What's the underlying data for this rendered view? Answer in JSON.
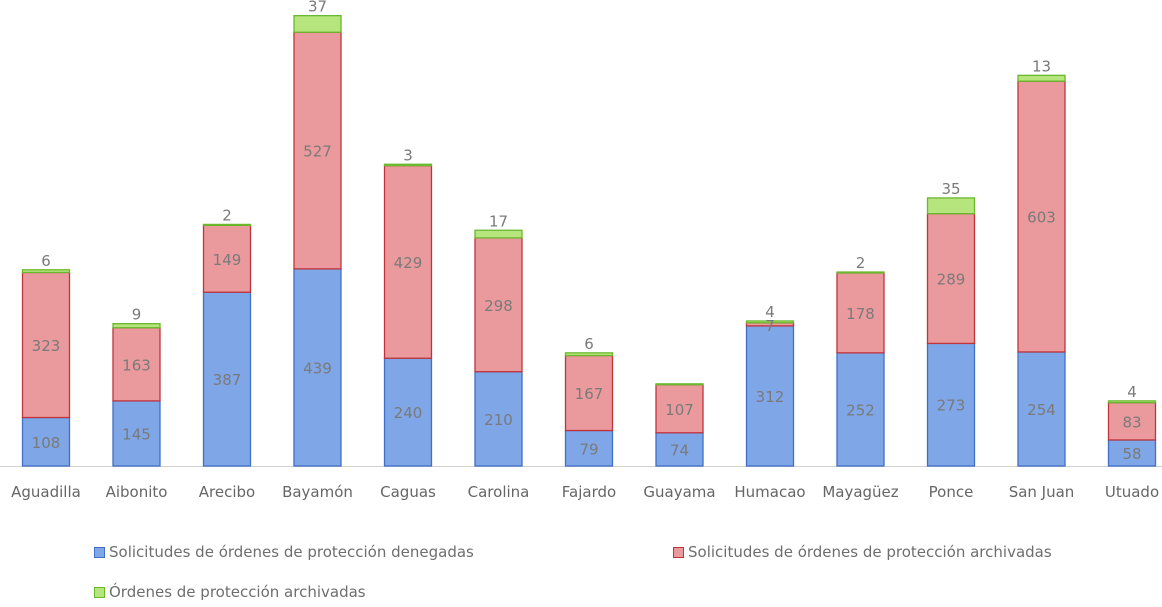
{
  "colors": {
    "denegadas": "#7fa6e6",
    "denegadas_border": "#3f6fc7",
    "sol_archivadas": "#ea9a9c",
    "sol_archivadas_border": "#c0343c",
    "ord_archivadas": "#b6e47d",
    "ord_archivadas_border": "#6ab82e",
    "label_text": "#7a7a7a",
    "axis": "#d0d0d0"
  },
  "chart_data": {
    "type": "bar",
    "stacked": true,
    "categories": [
      "Aguadilla",
      "Aibonito",
      "Arecibo",
      "Bayamón",
      "Caguas",
      "Carolina",
      "Fajardo",
      "Guayama",
      "Humacao",
      "Mayagüez",
      "Ponce",
      "San Juan",
      "Utuado"
    ],
    "series": [
      {
        "name": "Solicitudes de órdenes de protección denegadas",
        "values": [
          108,
          145,
          387,
          439,
          240,
          210,
          79,
          74,
          312,
          252,
          273,
          254,
          58
        ],
        "labels": [
          "108",
          "145",
          "387",
          "439",
          "240",
          "210",
          "79",
          "74",
          "312",
          "252",
          "273",
          "254",
          "58"
        ]
      },
      {
        "name": "Solicitudes de órdenes de protección archivadas",
        "values": [
          323,
          163,
          149,
          527,
          429,
          298,
          167,
          107,
          7,
          178,
          289,
          603,
          83
        ],
        "labels": [
          "323",
          "163",
          "149",
          "527",
          "429",
          "298",
          "167",
          "107",
          "7",
          "178",
          "289",
          "603",
          "83"
        ]
      },
      {
        "name": "Órdenes de protección archivadas",
        "values": [
          6,
          9,
          2,
          37,
          3,
          17,
          6,
          2,
          4,
          2,
          35,
          13,
          4
        ],
        "labels": [
          "6",
          "9",
          "2",
          "37",
          "3",
          "17",
          "6",
          "",
          "4",
          "2",
          "35",
          "13",
          "4"
        ]
      }
    ],
    "ylim": [
      0,
      1020
    ],
    "grid": false,
    "legend_position": "bottom"
  }
}
